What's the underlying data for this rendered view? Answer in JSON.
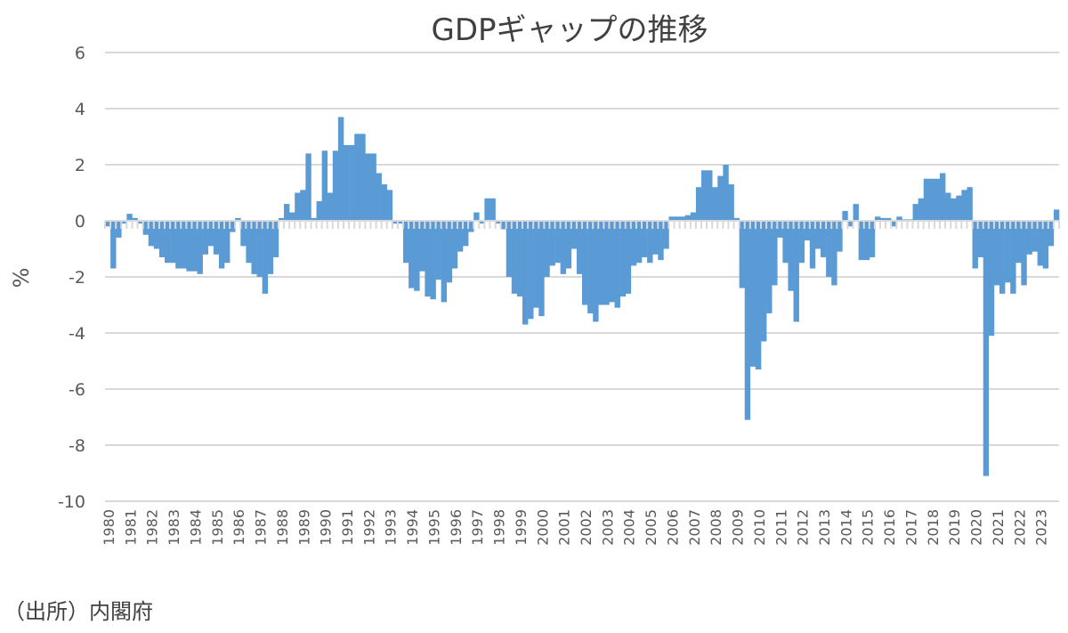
{
  "chart_data": {
    "type": "bar",
    "title": "GDPギャップの推移",
    "xlabel": "",
    "ylabel": "%",
    "ylim": [
      -10,
      6
    ],
    "yticks": [
      6,
      4,
      2,
      0,
      -2,
      -4,
      -6,
      -8,
      -10
    ],
    "grid": true,
    "frequency": "quarterly",
    "years": [
      "1980",
      "1981",
      "1982",
      "1983",
      "1984",
      "1985",
      "1986",
      "1987",
      "1988",
      "1989",
      "1990",
      "1991",
      "1992",
      "1993",
      "1994",
      "1995",
      "1996",
      "1997",
      "1998",
      "1999",
      "2000",
      "2001",
      "2002",
      "2003",
      "2004",
      "2005",
      "2006",
      "2007",
      "2008",
      "2009",
      "2010",
      "2011",
      "2012",
      "2013",
      "2014",
      "2015",
      "2016",
      "2017",
      "2018",
      "2019",
      "2020",
      "2021",
      "2022",
      "2023"
    ],
    "values": [
      -0.2,
      -1.7,
      -0.6,
      -0.1,
      0.25,
      0.1,
      -0.1,
      -0.5,
      -0.9,
      -1.0,
      -1.3,
      -1.5,
      -1.5,
      -1.7,
      -1.7,
      -1.8,
      -1.8,
      -1.9,
      -1.2,
      -0.9,
      -1.2,
      -1.7,
      -1.5,
      -0.4,
      0.1,
      -0.9,
      -1.5,
      -1.9,
      -2.0,
      -2.6,
      -1.9,
      -1.3,
      0.1,
      0.6,
      0.3,
      1.0,
      1.1,
      2.4,
      0.1,
      0.7,
      2.5,
      1.0,
      2.5,
      3.7,
      2.7,
      2.7,
      3.1,
      3.1,
      2.4,
      2.4,
      1.7,
      1.3,
      1.1,
      -0.1,
      -0.1,
      -1.5,
      -2.4,
      -2.5,
      -1.8,
      -2.7,
      -2.8,
      -2.1,
      -2.9,
      -2.2,
      -1.7,
      -1.1,
      -0.9,
      -0.4,
      0.3,
      -0.1,
      0.8,
      0.8,
      -0.1,
      -0.3,
      -2.0,
      -2.6,
      -2.7,
      -3.7,
      -3.5,
      -3.1,
      -3.4,
      -2.0,
      -1.6,
      -1.5,
      -1.9,
      -1.7,
      -1.0,
      -1.9,
      -3.0,
      -3.3,
      -3.6,
      -3.0,
      -3.0,
      -2.9,
      -3.1,
      -2.7,
      -2.6,
      -1.6,
      -1.5,
      -1.3,
      -1.5,
      -1.2,
      -1.4,
      -1.0,
      0.15,
      0.15,
      0.15,
      0.2,
      0.3,
      1.2,
      1.8,
      1.8,
      1.2,
      1.6,
      2.0,
      1.3,
      0.1,
      -2.4,
      -7.1,
      -5.2,
      -5.3,
      -4.3,
      -3.3,
      -2.3,
      -0.6,
      -1.5,
      -2.5,
      -3.6,
      -1.5,
      -0.7,
      -1.7,
      -1.0,
      -1.3,
      -2.0,
      -2.3,
      -1.1,
      0.35,
      -0.2,
      0.6,
      -1.4,
      -1.4,
      -1.3,
      0.15,
      0.1,
      0.1,
      -0.2,
      0.15,
      0.05,
      0.05,
      0.6,
      0.8,
      1.5,
      1.5,
      1.5,
      1.7,
      1.0,
      0.8,
      0.9,
      1.1,
      1.2,
      -1.7,
      -1.3,
      -9.1,
      -4.1,
      -2.3,
      -2.6,
      -2.2,
      -2.6,
      -1.5,
      -2.3,
      -1.2,
      -1.1,
      -1.6,
      -1.7,
      -0.9,
      0.4
    ],
    "bar_color": "#5b9bd5",
    "grid_color": "#d9d9d9"
  },
  "source_note": "（出所）内閣府"
}
